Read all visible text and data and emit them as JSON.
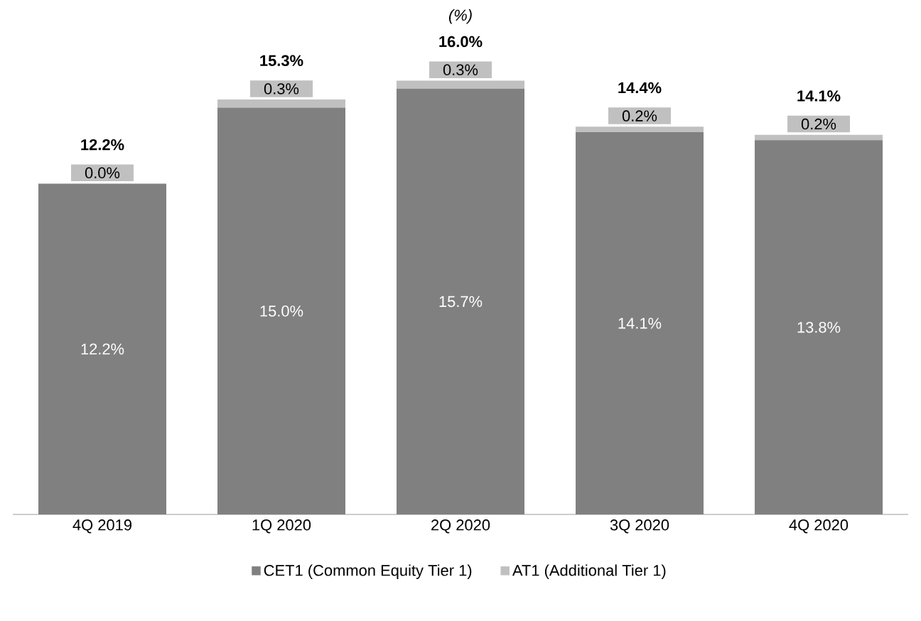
{
  "chart_data": {
    "type": "bar",
    "title": "(%)",
    "stacked": true,
    "legend": "bottom",
    "categories": [
      "4Q 2019",
      "1Q 2020",
      "2Q 2020",
      "3Q 2020",
      "4Q 2020"
    ],
    "series": [
      {
        "name": "CET1 (Common Equity Tier 1)",
        "color": "#808080",
        "values": [
          12.2,
          15.0,
          15.7,
          14.1,
          13.8
        ],
        "value_labels": [
          "12.2%",
          "15.0%",
          "15.7%",
          "14.1%",
          "13.8%"
        ]
      },
      {
        "name": "AT1 (Additional Tier 1)",
        "color": "#c0c0c0",
        "values": [
          0.0,
          0.3,
          0.3,
          0.2,
          0.2
        ],
        "value_labels": [
          "0.0%",
          "0.3%",
          "0.3%",
          "0.2%",
          "0.2%"
        ]
      }
    ],
    "totals": [
      "12.2%",
      "15.3%",
      "16.0%",
      "14.4%",
      "14.1%"
    ]
  }
}
